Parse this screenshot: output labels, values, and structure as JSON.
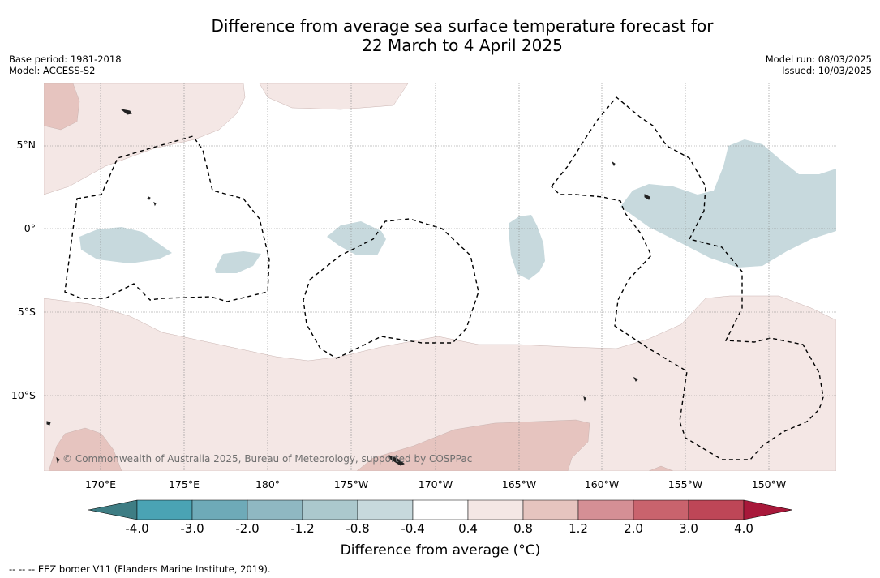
{
  "title_line1": "Difference from average sea surface temperature forecast for",
  "title_line2": "22 March to 4 April 2025",
  "base_period": "Base period: 1981-2018",
  "model": "Model: ACCESS-S2",
  "model_run": "Model run: 08/03/2025",
  "issued": "Issued: 10/03/2025",
  "lat_labels": [
    "5°N",
    "0°",
    "5°S",
    "10°S"
  ],
  "lon_labels": [
    "170°E",
    "175°E",
    "180°",
    "175°W",
    "170°W",
    "165°W",
    "160°W",
    "155°W",
    "150°W"
  ],
  "copyright": "© Commonwealth of Australia 2025, Bureau of Meteorology, supported by COSPPac",
  "colorbar": {
    "title": "Difference from average (°C)",
    "ticks": [
      "-4.0",
      "-3.0",
      "-2.0",
      "-1.2",
      "-0.8",
      "-0.4",
      "0.4",
      "0.8",
      "1.2",
      "2.0",
      "3.0",
      "4.0"
    ],
    "colors": {
      "below_min": "#3e7d84",
      "bins": [
        "#4aa3b4",
        "#6eaab8",
        "#8fb8c2",
        "#abc8cd",
        "#c7d9dd",
        "#ffffff",
        "#f4e7e5",
        "#e6c4bf",
        "#d58f95",
        "#c9636d",
        "#be4657"
      ],
      "above_max": "#a8183a"
    }
  },
  "eez_note": "--  --  -- EEZ border V11 (Flanders Marine Institute, 2019)."
}
